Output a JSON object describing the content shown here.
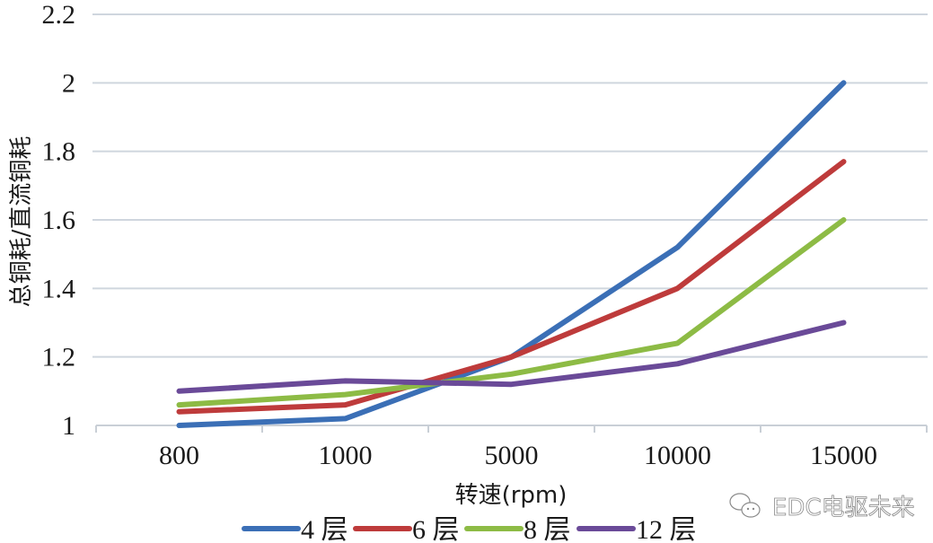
{
  "chart_data": {
    "type": "line",
    "title": "",
    "xlabel": "转速(rpm)",
    "ylabel": "总铜耗/直流铜耗",
    "categories": [
      "800",
      "1000",
      "5000",
      "10000",
      "15000"
    ],
    "ylim": [
      1,
      2.2
    ],
    "yticks": [
      "1",
      "1.2",
      "1.4",
      "1.6",
      "1.8",
      "2",
      "2.2"
    ],
    "ytick_values": [
      1,
      1.2,
      1.4,
      1.6,
      1.8,
      2,
      2.2
    ],
    "grid": true,
    "legend_position": "bottom",
    "series": [
      {
        "name": "4 层",
        "color": "#3b6fb6",
        "values": [
          1.0,
          1.02,
          1.2,
          1.52,
          2.0
        ]
      },
      {
        "name": "6 层",
        "color": "#be3b3b",
        "values": [
          1.04,
          1.06,
          1.2,
          1.4,
          1.77
        ]
      },
      {
        "name": "8 层",
        "color": "#8dbb45",
        "values": [
          1.06,
          1.09,
          1.15,
          1.24,
          1.6
        ]
      },
      {
        "name": "12 层",
        "color": "#6a4a98",
        "values": [
          1.1,
          1.13,
          1.12,
          1.18,
          1.3
        ]
      }
    ]
  },
  "watermark": {
    "icon": "wechat-icon",
    "text": "EDC电驱未来"
  }
}
